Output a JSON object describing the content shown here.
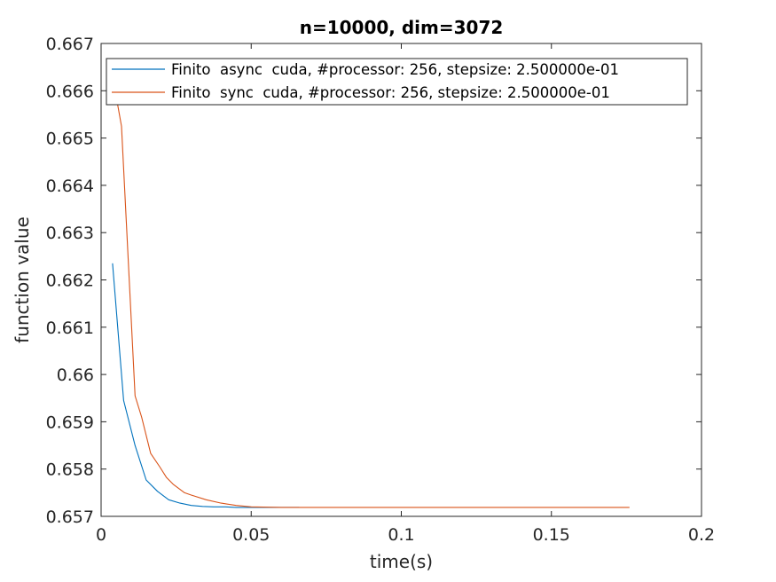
{
  "chart_data": {
    "type": "line",
    "title": "n=10000, dim=3072",
    "xlabel": "time(s)",
    "ylabel": "function value",
    "xlim": [
      0,
      0.2
    ],
    "ylim": [
      0.657,
      0.667
    ],
    "xticks": [
      0,
      0.05,
      0.1,
      0.15,
      0.2
    ],
    "xtick_labels": [
      "0",
      "0.05",
      "0.1",
      "0.15",
      "0.2"
    ],
    "yticks": [
      0.657,
      0.658,
      0.659,
      0.66,
      0.661,
      0.662,
      0.663,
      0.664,
      0.665,
      0.666,
      0.667
    ],
    "ytick_labels": [
      "0.657",
      "0.658",
      "0.659",
      "0.66",
      "0.661",
      "0.662",
      "0.663",
      "0.664",
      "0.665",
      "0.666",
      "0.667"
    ],
    "grid": false,
    "legend_position": "top-left",
    "series": [
      {
        "name": "Finito  async  cuda, #processor: 256, stepsize: 2.500000e-01",
        "color": "#0072bd",
        "x": [
          0.0038,
          0.0075,
          0.0113,
          0.015,
          0.0188,
          0.0225,
          0.0263,
          0.03,
          0.0338,
          0.0375,
          0.0413,
          0.045,
          0.0488,
          0.0525,
          0.0563,
          0.06,
          0.0638,
          0.066
        ],
        "y": [
          0.66235,
          0.65945,
          0.6585,
          0.65777,
          0.65753,
          0.65735,
          0.65728,
          0.65723,
          0.65721,
          0.6572,
          0.6572,
          0.65719,
          0.65719,
          0.65719,
          0.65719,
          0.65719,
          0.65719,
          0.65719
        ]
      },
      {
        "name": "Finito  sync  cuda, #processor: 256, stepsize: 2.500000e-01",
        "color": "#d95319",
        "x": [
          0.0045,
          0.0068,
          0.0113,
          0.0135,
          0.0165,
          0.0195,
          0.0218,
          0.024,
          0.0278,
          0.03,
          0.035,
          0.04,
          0.045,
          0.05,
          0.06,
          0.08,
          0.1,
          0.12,
          0.14,
          0.16,
          0.176
        ],
        "y": [
          0.66607,
          0.66525,
          0.65955,
          0.6591,
          0.65833,
          0.65805,
          0.65782,
          0.65768,
          0.6575,
          0.65745,
          0.65735,
          0.65728,
          0.65723,
          0.6572,
          0.65719,
          0.65719,
          0.65719,
          0.65719,
          0.65719,
          0.65719,
          0.65719
        ]
      }
    ]
  }
}
